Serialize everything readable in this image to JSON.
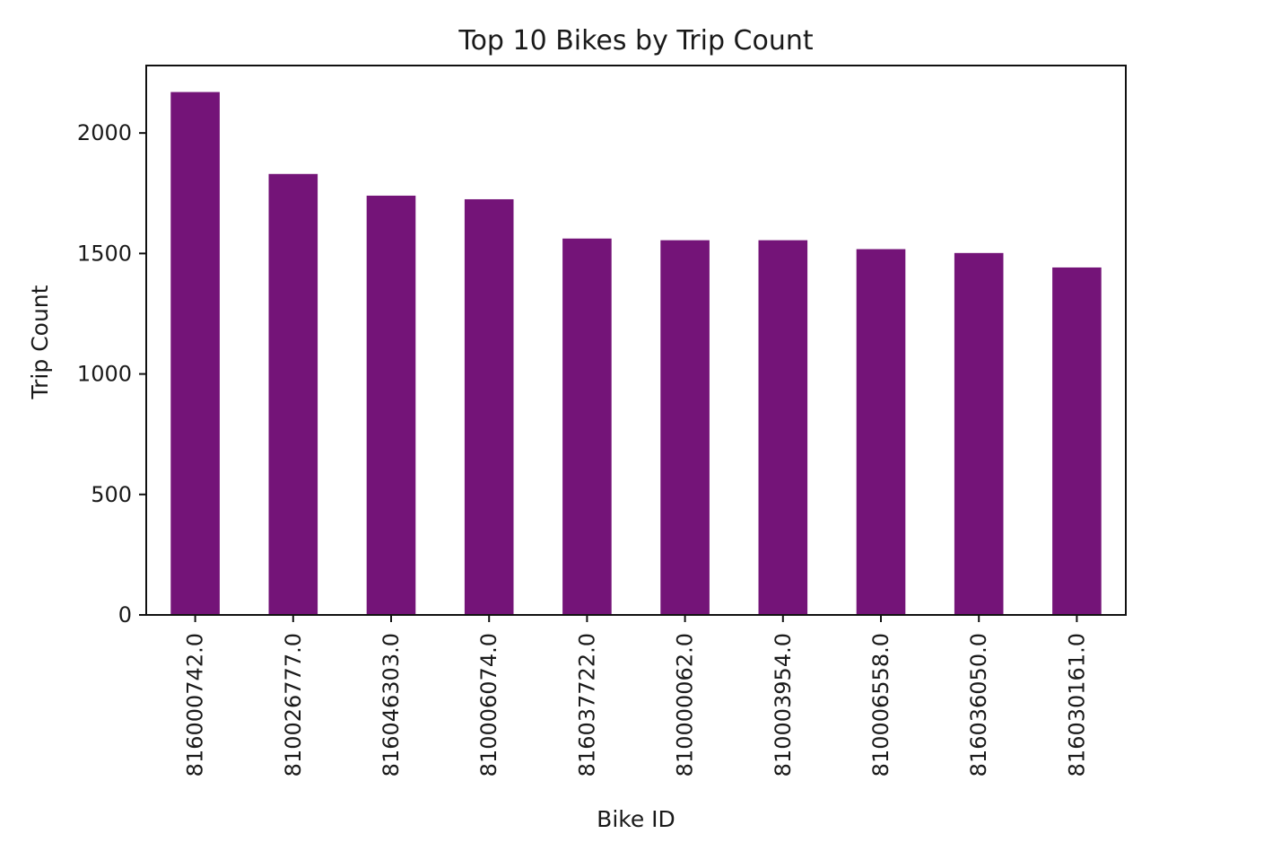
{
  "chart_data": {
    "type": "bar",
    "title": "Top 10 Bikes by Trip Count",
    "xlabel": "Bike ID",
    "ylabel": "Trip Count",
    "categories": [
      "816000742.0",
      "810026777.0",
      "816046303.0",
      "810006074.0",
      "816037722.0",
      "810000062.0",
      "810003954.0",
      "810006558.0",
      "816036050.0",
      "816030161.0"
    ],
    "values": [
      2170,
      1830,
      1740,
      1725,
      1562,
      1555,
      1555,
      1518,
      1502,
      1442
    ],
    "ylim": [
      0,
      2280
    ],
    "yticks": [
      0,
      500,
      1000,
      1500,
      2000
    ],
    "grid": false,
    "legend": "none",
    "bar_color": "#741478"
  }
}
